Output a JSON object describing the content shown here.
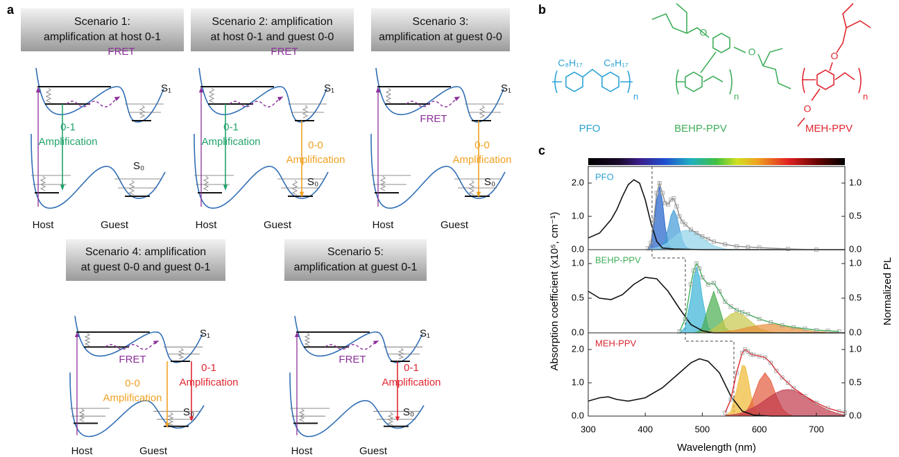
{
  "panel_labels": [
    "a",
    "b",
    "c"
  ],
  "diagram_labels": {
    "fret": "FRET",
    "s1": "S₁",
    "s0": "S₀",
    "host": "Host",
    "guest": "Guest"
  },
  "scenarios": [
    {
      "title": [
        "Scenario 1:",
        "amplification at host 0-1"
      ],
      "amps": [
        {
          "lines": [
            "0-1",
            "Amplification"
          ],
          "color": "#22a36a"
        }
      ]
    },
    {
      "title": [
        "Scenario 2: amplification",
        "at host 0-1 and guest 0-0"
      ],
      "amps": [
        {
          "lines": [
            "0-1",
            "Amplification"
          ],
          "color": "#22a36a"
        },
        {
          "lines": [
            "0-0",
            "Amplification"
          ],
          "color": "#f0a020"
        }
      ]
    },
    {
      "title": [
        "Scenario 3:",
        "amplification at guest 0-0"
      ],
      "amps": [
        {
          "lines": [
            "0-0",
            "Amplification"
          ],
          "color": "#f0a020"
        }
      ]
    },
    {
      "title": [
        "Scenario 4: amplification",
        "at  guest 0-0 and guest 0-1"
      ],
      "amps": [
        {
          "lines": [
            "0-0",
            "Amplification"
          ],
          "color": "#f0a020"
        },
        {
          "lines": [
            "0-1",
            "Amplification"
          ],
          "color": "#e0262f"
        }
      ]
    },
    {
      "title": [
        "Scenario 5:",
        "amplification at guest 0-1"
      ],
      "amps": [
        {
          "lines": [
            "0-1",
            "Amplification"
          ],
          "color": "#e0262f"
        }
      ]
    }
  ],
  "molecules": [
    {
      "name": "PFO",
      "color": "#2ba3d6",
      "atoms": [
        "C₈H₁₇",
        "C₈H₁₇",
        "n"
      ]
    },
    {
      "name": "BEHP-PPV",
      "color": "#3fae5a",
      "atoms": [
        "O",
        "O",
        "n"
      ]
    },
    {
      "name": "MEH-PPV",
      "color": "#e0262f",
      "atoms": [
        "O",
        "O",
        "n"
      ]
    }
  ],
  "chart_data": [
    {
      "type": "line",
      "label": "PFO",
      "label_color": "#2ba3d6",
      "xlim": [
        300,
        750
      ],
      "ylim": [
        0,
        2.5
      ],
      "yticks": [
        {
          "value": 0,
          "label": "0.0"
        },
        {
          "value": 1,
          "label": "1.0"
        },
        {
          "value": 2,
          "label": "2.0"
        }
      ],
      "y2lim": [
        0,
        1.25
      ],
      "y2ticks": [
        {
          "value": 0,
          "label": "0.0"
        },
        {
          "value": 0.5,
          "label": "0.5"
        },
        {
          "value": 1,
          "label": "1.0"
        }
      ],
      "series": [
        {
          "style": "area",
          "axis": "y2",
          "color": "#1f5fc9",
          "x": [
            405,
            410,
            415,
            420,
            425,
            430,
            435,
            440,
            445,
            450,
            455,
            460,
            465,
            470,
            480,
            490,
            500,
            510,
            520,
            540,
            560,
            580,
            600,
            650,
            700
          ],
          "values": [
            0.02,
            0.1,
            0.34,
            0.74,
            0.95,
            0.74,
            0.34,
            0.1,
            0.02,
            0,
            0,
            0,
            0,
            0,
            0,
            0,
            0,
            0,
            0,
            0,
            0,
            0,
            0,
            0,
            0
          ]
        },
        {
          "style": "area",
          "axis": "y2",
          "color": "#3f9ad6",
          "x": [
            405,
            410,
            415,
            420,
            425,
            430,
            435,
            440,
            445,
            450,
            455,
            460,
            465,
            470,
            480,
            490,
            500,
            510,
            520,
            540,
            560,
            580,
            600,
            650,
            700
          ],
          "values": [
            0,
            0,
            0,
            0,
            0.01,
            0.05,
            0.15,
            0.32,
            0.51,
            0.6,
            0.51,
            0.32,
            0.15,
            0.05,
            0,
            0,
            0,
            0,
            0,
            0,
            0,
            0,
            0,
            0,
            0
          ]
        },
        {
          "style": "area",
          "axis": "y2",
          "color": "#8fd3ea",
          "x": [
            405,
            410,
            415,
            420,
            425,
            430,
            435,
            440,
            445,
            450,
            455,
            460,
            465,
            470,
            480,
            490,
            500,
            510,
            520,
            540,
            560,
            580,
            600,
            650,
            700
          ],
          "values": [
            0.01,
            0.01,
            0.02,
            0.03,
            0.04,
            0.06,
            0.08,
            0.11,
            0.15,
            0.18,
            0.22,
            0.25,
            0.28,
            0.29,
            0.29,
            0.25,
            0.18,
            0.11,
            0.06,
            0.01,
            0,
            0,
            0,
            0,
            0
          ]
        },
        {
          "style": "line",
          "color": "#111111",
          "x": [
            300,
            320,
            340,
            350,
            360,
            370,
            380,
            390,
            400,
            410,
            420,
            430,
            450,
            500,
            600,
            700,
            750
          ],
          "values": [
            0.35,
            0.5,
            0.9,
            1.2,
            1.6,
            1.95,
            2.1,
            2.0,
            1.5,
            0.8,
            0.25,
            0.05,
            0.02,
            0,
            0,
            0,
            0
          ]
        },
        {
          "style": "markers",
          "axis": "y2",
          "color": "#8a8a8a",
          "x": [
            405,
            410,
            415,
            420,
            425,
            430,
            435,
            440,
            445,
            450,
            455,
            460,
            465,
            470,
            480,
            490,
            500,
            510,
            520,
            540,
            560,
            580,
            600,
            650,
            700
          ],
          "values": [
            0.02,
            0.1,
            0.45,
            0.85,
            1.0,
            0.85,
            0.7,
            0.68,
            0.75,
            0.77,
            0.65,
            0.5,
            0.42,
            0.38,
            0.3,
            0.25,
            0.2,
            0.16,
            0.12,
            0.08,
            0.05,
            0.04,
            0.03,
            0.01,
            0
          ]
        }
      ]
    },
    {
      "type": "line",
      "label": "BEHP-PPV",
      "label_color": "#3fae5a",
      "xlim": [
        300,
        750
      ],
      "ylim": [
        0,
        1.2
      ],
      "ylabel": "Absorption coefficient (x10⁵, cm⁻¹)",
      "y2label": "Normalized PL",
      "yticks": [
        {
          "value": 0,
          "label": "0.0"
        },
        {
          "value": 0.5,
          "label": "0.5"
        },
        {
          "value": 1,
          "label": "1.0"
        }
      ],
      "y2lim": [
        0,
        1.2
      ],
      "y2ticks": [
        {
          "value": 0,
          "label": "0.0"
        },
        {
          "value": 0.5,
          "label": "0.5"
        },
        {
          "value": 1,
          "label": "1.0"
        }
      ],
      "series": [
        {
          "style": "area",
          "axis": "y2",
          "color": "#38b4d6",
          "x": [
            460,
            470,
            480,
            485,
            490,
            495,
            500,
            510,
            520,
            530,
            540,
            550,
            560,
            570,
            580,
            600,
            620,
            640,
            660,
            680,
            700,
            720,
            740
          ],
          "values": [
            0,
            0.08,
            0.51,
            0.81,
            0.95,
            0.81,
            0.51,
            0.08,
            0,
            0,
            0,
            0,
            0,
            0,
            0,
            0,
            0,
            0,
            0,
            0,
            0,
            0,
            0
          ]
        },
        {
          "style": "area",
          "axis": "y2",
          "color": "#48ad4e",
          "x": [
            460,
            470,
            480,
            485,
            490,
            495,
            500,
            510,
            520,
            530,
            540,
            550,
            560,
            570,
            580,
            600,
            620,
            640,
            660,
            680,
            700,
            720,
            740
          ],
          "values": [
            0,
            0,
            0,
            0,
            0.01,
            0.03,
            0.08,
            0.36,
            0.6,
            0.36,
            0.08,
            0.01,
            0,
            0,
            0,
            0,
            0,
            0,
            0,
            0,
            0,
            0,
            0
          ]
        },
        {
          "style": "area",
          "axis": "y2",
          "color": "#c8c84a",
          "x": [
            460,
            470,
            480,
            485,
            490,
            495,
            500,
            510,
            520,
            530,
            540,
            550,
            560,
            570,
            580,
            600,
            620,
            640,
            660,
            680,
            700,
            720,
            740
          ],
          "values": [
            0,
            0,
            0,
            0,
            0,
            0,
            0.01,
            0.02,
            0.06,
            0.12,
            0.2,
            0.27,
            0.3,
            0.27,
            0.2,
            0.06,
            0.01,
            0,
            0,
            0,
            0,
            0,
            0
          ]
        },
        {
          "style": "area",
          "axis": "y2",
          "color": "#e8903a",
          "x": [
            460,
            470,
            480,
            485,
            490,
            495,
            500,
            510,
            520,
            530,
            540,
            550,
            560,
            570,
            580,
            600,
            620,
            640,
            660,
            680,
            700,
            720,
            740
          ],
          "values": [
            0,
            0,
            0,
            0,
            0,
            0,
            0,
            0,
            0.01,
            0.01,
            0.02,
            0.03,
            0.04,
            0.06,
            0.08,
            0.11,
            0.13,
            0.11,
            0.08,
            0.04,
            0.02,
            0.01,
            0
          ]
        },
        {
          "style": "line",
          "color": "#111111",
          "x": [
            300,
            320,
            340,
            360,
            380,
            400,
            420,
            440,
            460,
            480,
            500,
            520,
            540,
            560,
            600,
            700,
            750
          ],
          "values": [
            0.6,
            0.5,
            0.48,
            0.55,
            0.7,
            0.8,
            0.78,
            0.6,
            0.35,
            0.12,
            0.03,
            0,
            0,
            0,
            0,
            0,
            0
          ]
        },
        {
          "style": "markers",
          "axis": "y2",
          "color": "#3fae5a",
          "x": [
            460,
            470,
            480,
            485,
            490,
            495,
            500,
            510,
            520,
            530,
            540,
            550,
            560,
            570,
            580,
            600,
            620,
            640,
            660,
            680,
            700,
            720,
            740
          ],
          "values": [
            0.02,
            0.2,
            0.7,
            0.9,
            1.0,
            0.93,
            0.8,
            0.7,
            0.72,
            0.6,
            0.45,
            0.38,
            0.33,
            0.3,
            0.27,
            0.2,
            0.15,
            0.11,
            0.08,
            0.06,
            0.04,
            0.03,
            0.02
          ]
        }
      ]
    },
    {
      "type": "line",
      "label": "MEH-PPV",
      "label_color": "#d9262f",
      "xlim": [
        300,
        750
      ],
      "ylim": [
        0,
        2.5
      ],
      "xlabel": "Wavelength (nm)",
      "xticks": [
        300,
        400,
        500,
        600,
        700
      ],
      "yticks": [
        {
          "value": 0,
          "label": "0.0"
        },
        {
          "value": 1,
          "label": "1.0"
        },
        {
          "value": 2,
          "label": "2.0"
        }
      ],
      "y2lim": [
        0,
        1.25
      ],
      "y2ticks": [
        {
          "value": 0,
          "label": "0.0"
        },
        {
          "value": 0.5,
          "label": "0.5"
        },
        {
          "value": 1,
          "label": "1.0"
        }
      ],
      "series": [
        {
          "style": "area",
          "axis": "y2",
          "color": "#f0b830",
          "x": [
            540,
            550,
            560,
            570,
            575,
            580,
            585,
            590,
            600,
            610,
            620,
            630,
            640,
            650,
            660,
            680,
            700,
            720,
            740,
            750
          ],
          "values": [
            0,
            0.07,
            0.38,
            0.76,
            0.75,
            0.57,
            0.33,
            0.15,
            0.02,
            0,
            0,
            0,
            0,
            0,
            0,
            0,
            0,
            0,
            0,
            0
          ]
        },
        {
          "style": "area",
          "axis": "y2",
          "color": "#e45a3a",
          "x": [
            540,
            550,
            560,
            570,
            575,
            580,
            585,
            590,
            600,
            610,
            620,
            630,
            640,
            650,
            660,
            680,
            700,
            720,
            740,
            750
          ],
          "values": [
            0,
            0,
            0,
            0.03,
            0.06,
            0.11,
            0.19,
            0.3,
            0.53,
            0.65,
            0.53,
            0.3,
            0.11,
            0.03,
            0,
            0,
            0,
            0,
            0,
            0
          ]
        },
        {
          "style": "area",
          "axis": "y2",
          "color": "#c0394a",
          "x": [
            540,
            550,
            560,
            570,
            575,
            580,
            585,
            590,
            600,
            610,
            620,
            630,
            640,
            650,
            660,
            680,
            700,
            720,
            740,
            750
          ],
          "values": [
            0.01,
            0.02,
            0.03,
            0.05,
            0.07,
            0.09,
            0.11,
            0.13,
            0.18,
            0.24,
            0.3,
            0.35,
            0.39,
            0.4,
            0.39,
            0.3,
            0.18,
            0.09,
            0.03,
            0.02
          ]
        },
        {
          "style": "line",
          "color": "#111111",
          "x": [
            300,
            320,
            335,
            350,
            370,
            400,
            430,
            460,
            480,
            495,
            510,
            530,
            550,
            570,
            590,
            620,
            700,
            750
          ],
          "values": [
            0.45,
            0.55,
            0.58,
            0.5,
            0.45,
            0.55,
            0.85,
            1.3,
            1.6,
            1.72,
            1.65,
            1.3,
            0.6,
            0.15,
            0.03,
            0,
            0,
            0
          ]
        },
        {
          "style": "markers",
          "axis": "y2",
          "color": "#d9262f",
          "x": [
            540,
            550,
            560,
            570,
            575,
            580,
            585,
            590,
            600,
            610,
            620,
            630,
            640,
            650,
            660,
            680,
            700,
            720,
            740,
            750
          ],
          "values": [
            0.05,
            0.25,
            0.65,
            0.95,
            1.0,
            0.97,
            0.93,
            0.92,
            0.9,
            0.88,
            0.8,
            0.68,
            0.58,
            0.5,
            0.42,
            0.3,
            0.2,
            0.12,
            0.07,
            0.05
          ]
        }
      ]
    }
  ]
}
